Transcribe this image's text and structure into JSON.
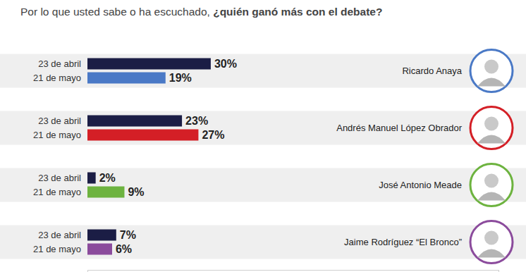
{
  "chart_data": {
    "type": "bar",
    "orientation": "horizontal",
    "title": "Por lo que usted sabe o ha escuchado, ¿quién ganó más con el debate?",
    "categories": [
      "Ricardo Anaya",
      "Andrés Manuel López Obrador",
      "José Antonio Meade",
      "Jaime Rodríguez “El Bronco”"
    ],
    "series": [
      {
        "name": "23 de abril",
        "color": "#1b1d45",
        "values": [
          30,
          23,
          2,
          7
        ],
        "value_labels": [
          "30%",
          "23%",
          "2%",
          "7%"
        ]
      },
      {
        "name": "21 de mayo",
        "colors": [
          "#4a79c6",
          "#d41f26",
          "#6db33f",
          "#8b4b9c"
        ],
        "values": [
          19,
          27,
          9,
          6
        ],
        "value_labels": [
          "19%",
          "27%",
          "9%",
          "6%"
        ]
      }
    ],
    "xlim": [
      0,
      100
    ],
    "xticks": [
      0,
      100
    ],
    "data_labels": true,
    "tick_labels": false,
    "grid": false
  }
}
